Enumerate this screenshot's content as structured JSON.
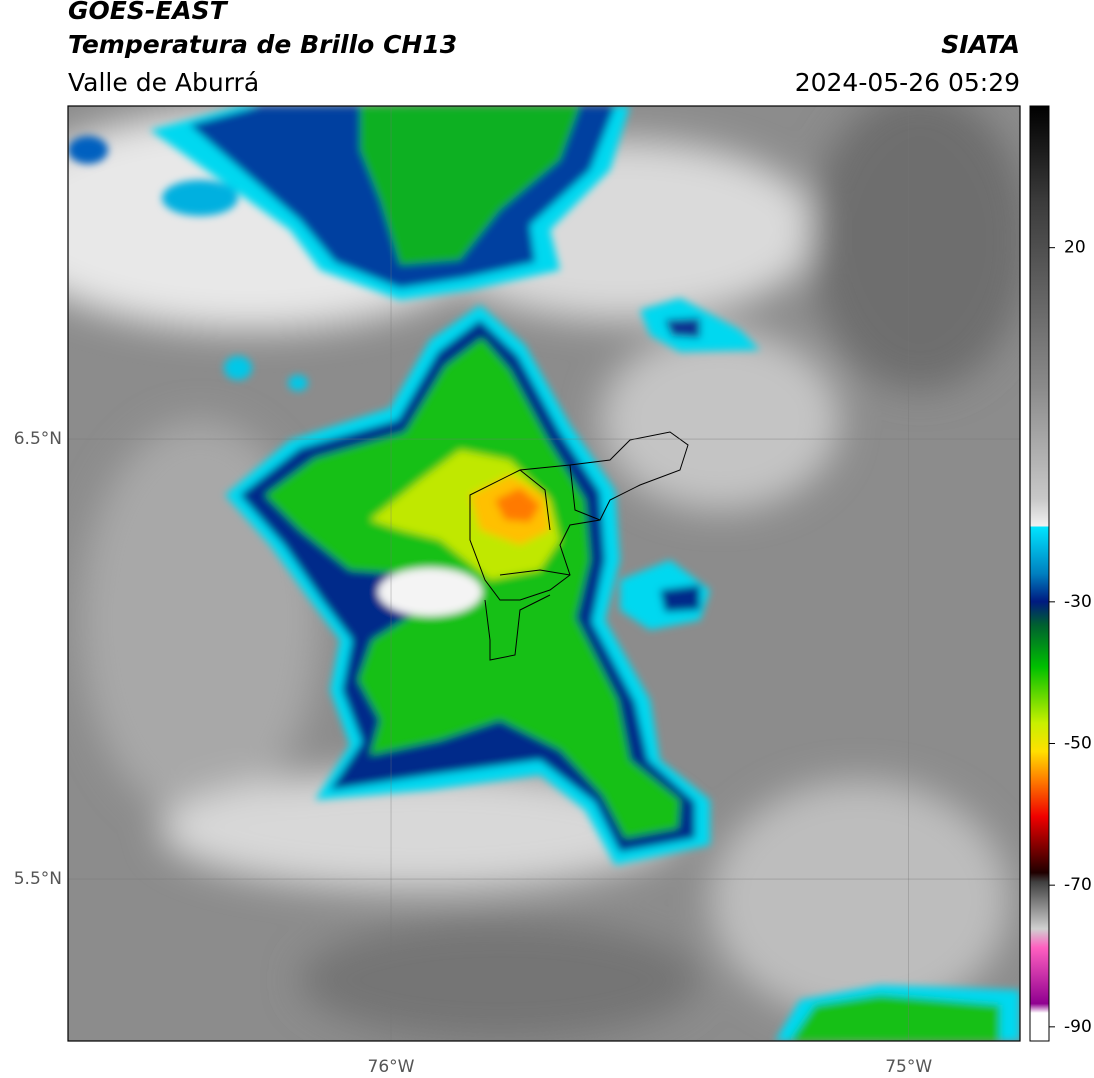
{
  "header": {
    "title": "GOES-EAST",
    "subtitle": "Temperatura de Brillo CH13",
    "region": "Valle de Aburrá",
    "source": "SIATA",
    "datetime": "2024-05-26 05:29"
  },
  "map": {
    "xlim": [
      -76.624,
      -74.785
    ],
    "ylim": [
      5.132,
      7.257
    ],
    "xticks": [
      {
        "value": -76,
        "label": "76°W"
      },
      {
        "value": -75,
        "label": "75°W"
      }
    ],
    "yticks": [
      {
        "value": 6.5,
        "label": "6.5°N"
      },
      {
        "value": 5.5,
        "label": "5.5°N"
      }
    ]
  },
  "colorbar": {
    "lim": [
      -92,
      40
    ],
    "ticks": [
      20,
      -30,
      -50,
      -70,
      -90
    ]
  }
}
